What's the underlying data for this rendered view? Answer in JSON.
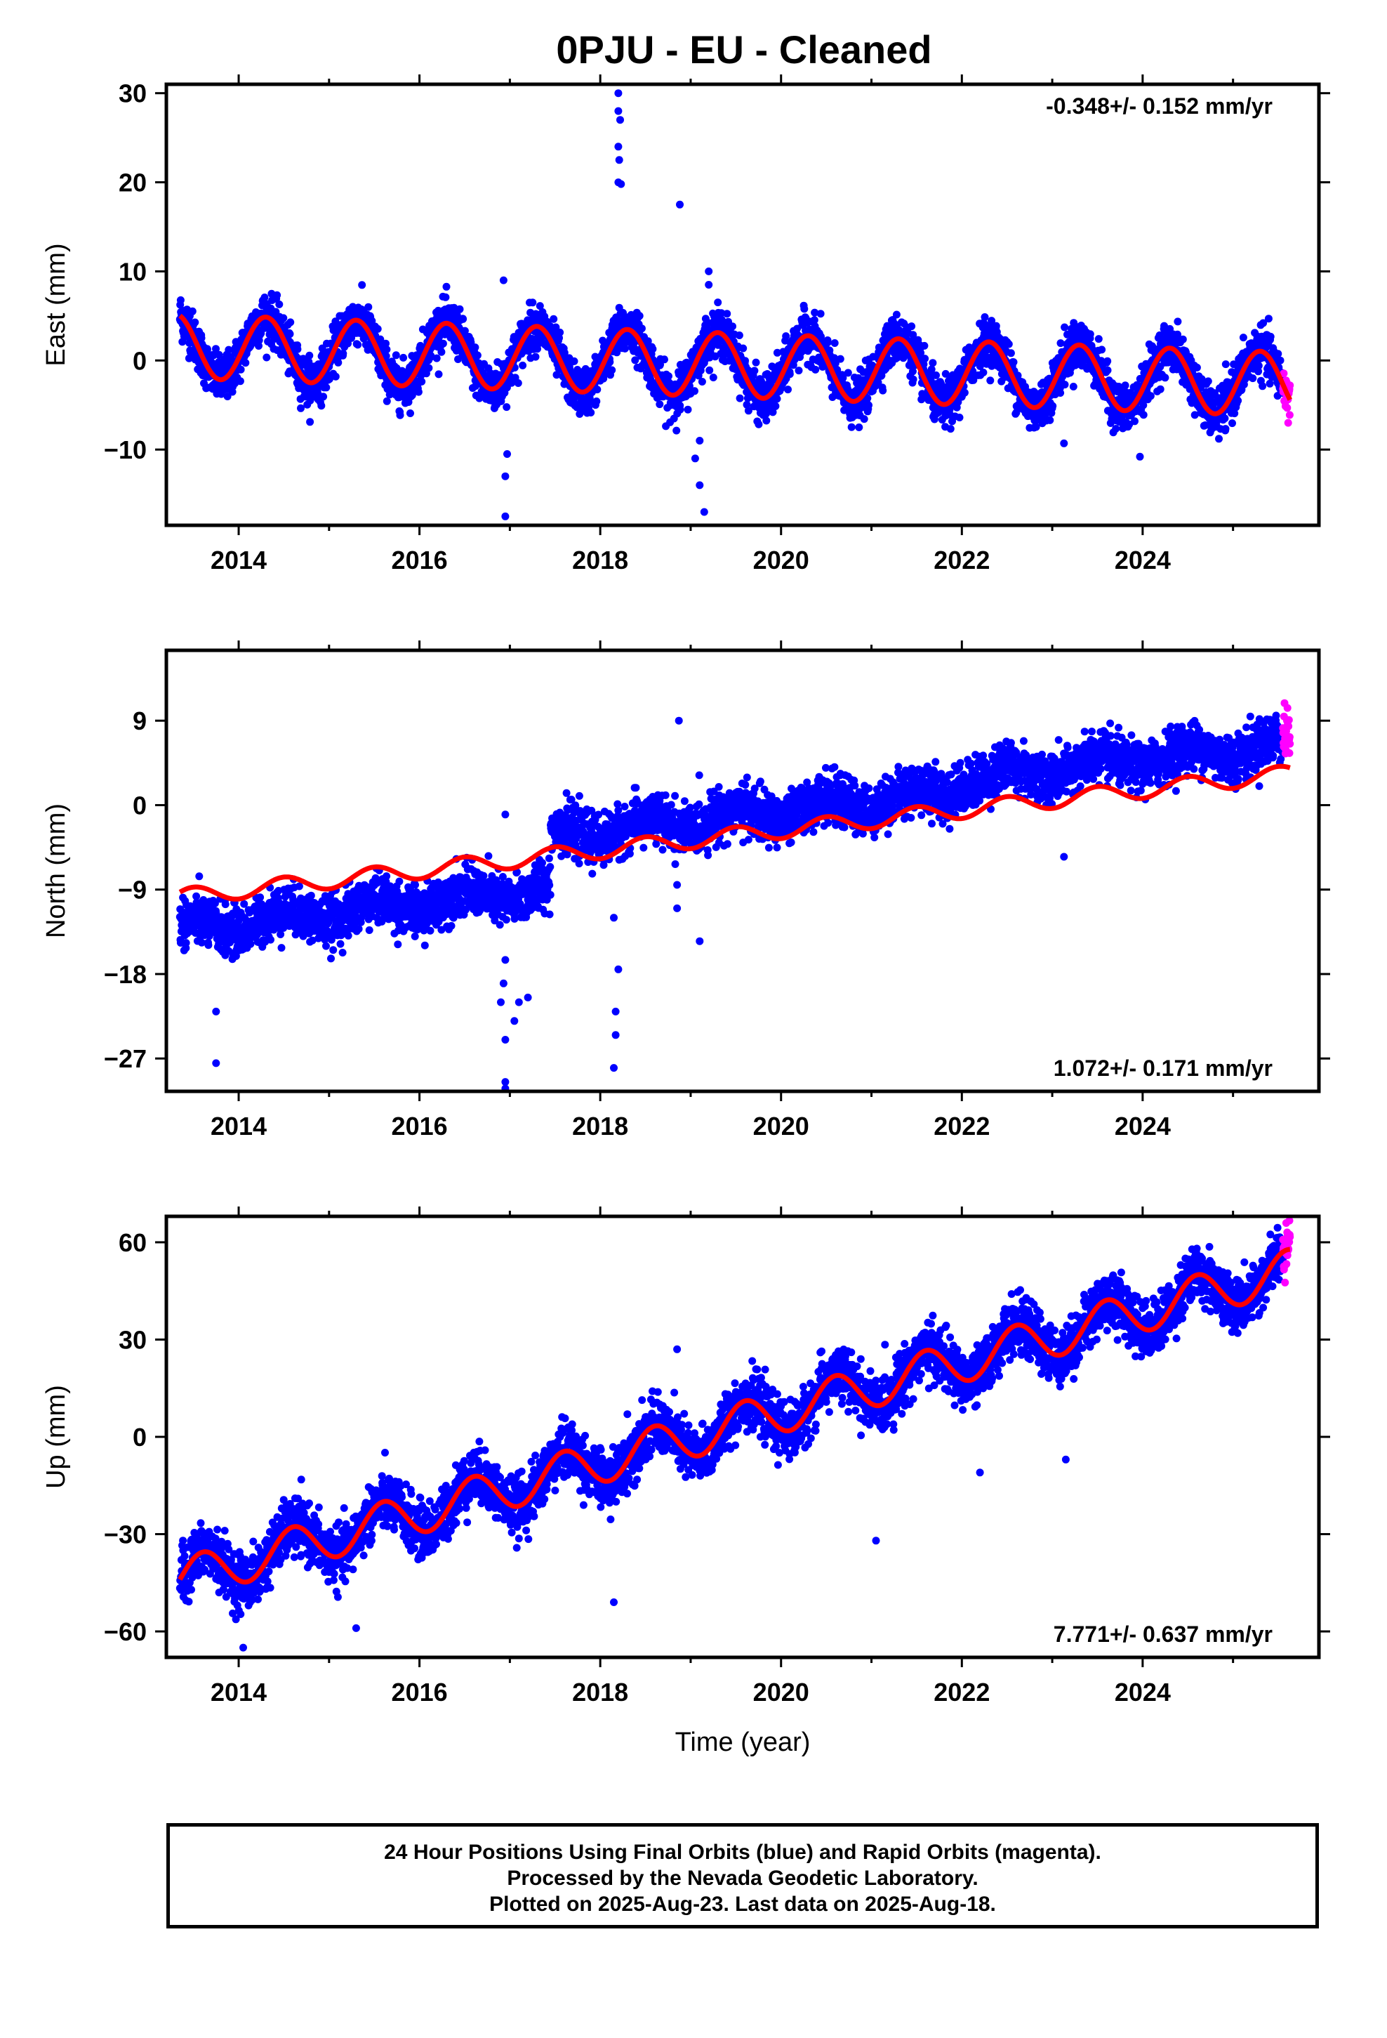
{
  "title": "0PJU  - EU - Cleaned",
  "x_axis_label": "Time (year)",
  "footer": {
    "line1": "24 Hour Positions Using Final Orbits (blue) and Rapid Orbits (magenta).",
    "line2": "Processed by the Nevada Geodetic Laboratory.",
    "line3": "Plotted on 2025-Aug-23. Last data on 2025-Aug-18."
  },
  "colors": {
    "final": "#0000ff",
    "rapid": "#ff00ff",
    "model": "#ff0000"
  },
  "chart_data": [
    {
      "type": "scatter",
      "ylabel": "East (mm)",
      "rate_text": "-0.348+/- 0.152 mm/yr",
      "rate_position": "top-right",
      "xlim": [
        2013.2,
        2025.95
      ],
      "ylim": [
        -18.5,
        31
      ],
      "x_ticks": [
        2014,
        2016,
        2018,
        2020,
        2022,
        2024
      ],
      "y_ticks": [
        -10,
        0,
        10,
        20,
        30
      ],
      "model": {
        "offset": 1.6,
        "rate": -0.348,
        "annual_amplitude": 3.6,
        "peak_month_phase": 0.3
      },
      "data_range": [
        2013.35,
        2025.63
      ],
      "outliers": [
        [
          2016.95,
          -17.5
        ],
        [
          2016.95,
          -13
        ],
        [
          2016.97,
          -10.5
        ],
        [
          2016.93,
          9
        ],
        [
          2018.2,
          30
        ],
        [
          2018.2,
          28
        ],
        [
          2018.22,
          27
        ],
        [
          2018.2,
          24
        ],
        [
          2018.21,
          22.5
        ],
        [
          2018.2,
          20
        ],
        [
          2018.23,
          19.8
        ],
        [
          2018.88,
          17.5
        ],
        [
          2019.15,
          -17
        ],
        [
          2019.1,
          -14
        ],
        [
          2019.05,
          -11
        ],
        [
          2019.2,
          10
        ],
        [
          2019.2,
          8.5
        ],
        [
          2019.1,
          -9
        ],
        [
          2023.13,
          -9.3
        ],
        [
          2023.97,
          -10.8
        ]
      ]
    },
    {
      "type": "scatter",
      "ylabel": "North (mm)",
      "rate_text": "1.072+/- 0.171 mm/yr",
      "rate_position": "bottom-right",
      "xlim": [
        2013.2,
        2025.95
      ],
      "ylim": [
        -30.5,
        16.5
      ],
      "x_ticks": [
        2014,
        2016,
        2018,
        2020,
        2022,
        2024
      ],
      "y_ticks": [
        -27,
        -18,
        -9,
        0,
        9
      ],
      "model": {
        "offset": -9.8,
        "rate": 1.072,
        "annual_amplitude": 0.9,
        "peak_month_phase": 0.5
      },
      "data_range": [
        2013.35,
        2025.63
      ],
      "outliers": [
        [
          2013.75,
          -22
        ],
        [
          2013.75,
          -27.5
        ],
        [
          2016.95,
          -29.5
        ],
        [
          2016.95,
          -30.2
        ],
        [
          2016.95,
          -25
        ],
        [
          2016.9,
          -21
        ],
        [
          2016.93,
          -19
        ],
        [
          2016.95,
          -16.5
        ],
        [
          2017.05,
          -23
        ],
        [
          2017.1,
          -21
        ],
        [
          2017.2,
          -20.5
        ],
        [
          2018.15,
          -28
        ],
        [
          2018.17,
          -24.5
        ],
        [
          2018.17,
          -22
        ],
        [
          2018.2,
          -17.5
        ],
        [
          2018.15,
          -12
        ],
        [
          2018.85,
          -8.5
        ],
        [
          2018.85,
          -11
        ],
        [
          2018.87,
          9
        ],
        [
          2019.1,
          -14.5
        ],
        [
          2023.13,
          -5.5
        ],
        [
          2016.95,
          -1
        ]
      ]
    },
    {
      "type": "scatter",
      "ylabel": "Up (mm)",
      "rate_text": "7.771+/- 0.637 mm/yr",
      "rate_position": "bottom-right",
      "xlim": [
        2013.2,
        2025.95
      ],
      "ylim": [
        -68,
        68
      ],
      "x_ticks": [
        2014,
        2016,
        2018,
        2020,
        2022,
        2024
      ],
      "y_ticks": [
        -60,
        -30,
        0,
        30,
        60
      ],
      "model": {
        "offset": -44,
        "rate": 7.771,
        "annual_amplitude": 6.5,
        "peak_month_phase": 0.6
      },
      "data_range": [
        2013.35,
        2025.63
      ],
      "outliers": [
        [
          2014.05,
          -65
        ],
        [
          2018.15,
          -51
        ],
        [
          2021.05,
          -32
        ],
        [
          2023.15,
          -7
        ],
        [
          2022.2,
          -11
        ],
        [
          2018.85,
          27
        ],
        [
          2018.3,
          7
        ],
        [
          2015.3,
          -59
        ]
      ]
    }
  ]
}
